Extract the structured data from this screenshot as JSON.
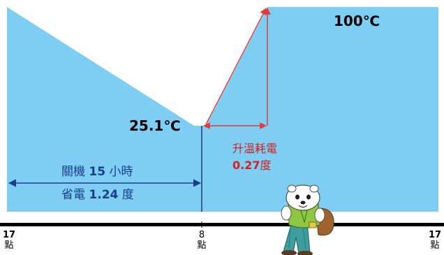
{
  "colors": {
    "fill": "#7ecdf2",
    "axis": "#000000",
    "arrow_blue": "#1a3d8f",
    "arrow_red": "#e43a3a",
    "text_blue": "#1a3d8f",
    "text_red": "#d81e1e"
  },
  "temps": {
    "low": "25.1℃",
    "high": "100℃"
  },
  "off_period": {
    "line1_prefix": "關機",
    "line1_value": "15",
    "line1_suffix": "小時",
    "line2_prefix": "省電",
    "line2_value": "1.24",
    "line2_suffix": "度"
  },
  "heat_up": {
    "label": "升溫耗電",
    "value": "0.27",
    "unit": "度"
  },
  "time_axis": {
    "start_num": "17",
    "start_unit": "點",
    "mid_num": "8",
    "mid_unit": "點",
    "end_num": "17",
    "end_unit": "點"
  },
  "mascot": "polar-bear-mascot-icon"
}
